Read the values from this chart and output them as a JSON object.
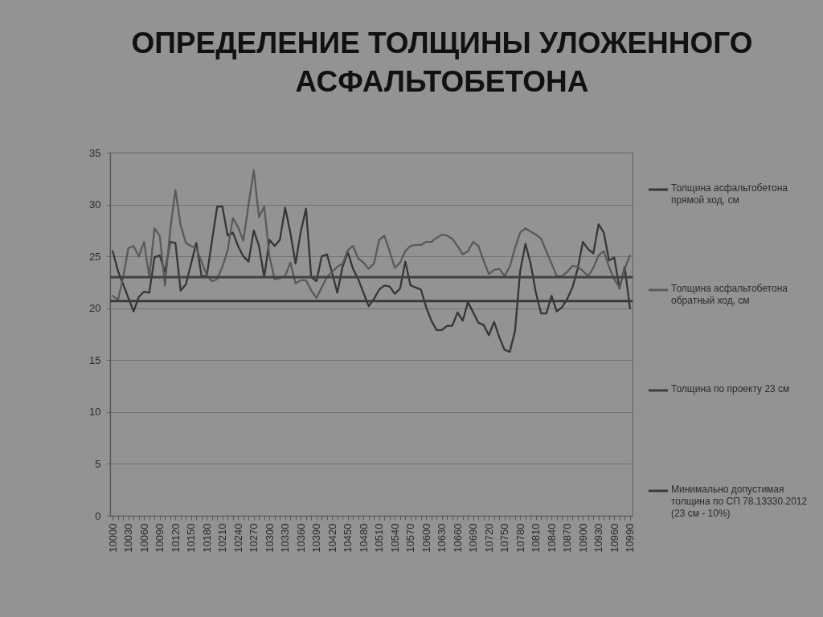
{
  "chart_data": {
    "type": "line",
    "title": "ОПРЕДЕЛЕНИЕ ТОЛЩИНЫ УЛОЖЕННОГО\nАСФАЛЬТОБЕТОНА",
    "categories": [
      "10000",
      null,
      null,
      "10030",
      null,
      null,
      "10060",
      null,
      null,
      "10090",
      null,
      null,
      "10120",
      null,
      null,
      "10150",
      null,
      null,
      "10180",
      null,
      null,
      "10210",
      null,
      null,
      "10240",
      null,
      null,
      "10270",
      null,
      null,
      "10300",
      null,
      null,
      "10330",
      null,
      null,
      "10360",
      null,
      null,
      "10390",
      null,
      null,
      "10420",
      null,
      null,
      "10450",
      null,
      null,
      "10480",
      null,
      null,
      "10510",
      null,
      null,
      "10540",
      null,
      null,
      "10570",
      null,
      null,
      "10600",
      null,
      null,
      "10630",
      null,
      null,
      "10660",
      null,
      null,
      "10690",
      null,
      null,
      "10720",
      null,
      null,
      "10750",
      null,
      null,
      "10780",
      null,
      null,
      "10810",
      null,
      null,
      "10840",
      null,
      null,
      "10870",
      null,
      null,
      "10900",
      null,
      null,
      "10930",
      null,
      null,
      "10960",
      null,
      null,
      "10990"
    ],
    "series": [
      {
        "name": "Толщина асфальтобетона прямой ход, см",
        "color": "#363636",
        "values": [
          25.5,
          23.6,
          22.3,
          21.0,
          19.7,
          21.1,
          21.6,
          21.5,
          24.9,
          25.1,
          23.5,
          26.4,
          26.3,
          21.7,
          22.3,
          24.3,
          26.3,
          23.1,
          23.1,
          26.5,
          29.8,
          29.8,
          27.0,
          27.3,
          26.0,
          25.0,
          24.5,
          27.5,
          26.0,
          23.0,
          26.6,
          26.0,
          26.6,
          29.7,
          27.3,
          24.3,
          27.4,
          29.6,
          23.0,
          22.6,
          25.0,
          25.2,
          23.4,
          21.5,
          24.0,
          25.4,
          23.8,
          22.8,
          21.5,
          20.2,
          20.9,
          21.8,
          22.2,
          22.1,
          21.4,
          21.9,
          24.5,
          22.2,
          22.0,
          21.8,
          20.1,
          18.8,
          17.9,
          17.9,
          18.3,
          18.3,
          19.6,
          18.8,
          20.6,
          19.6,
          18.6,
          18.4,
          17.4,
          18.7,
          17.2,
          16.0,
          15.8,
          17.8,
          23.6,
          26.2,
          24.3,
          21.5,
          19.5,
          19.5,
          21.2,
          19.7,
          20.1,
          20.9,
          22.0,
          23.8,
          26.4,
          25.7,
          25.3,
          28.1,
          27.3,
          24.6,
          24.9,
          21.9,
          24.0,
          20.0
        ]
      },
      {
        "name": "Толщина асфальтобетона обратный ход, см",
        "color": "#5a5a5a",
        "values": [
          21.2,
          20.8,
          23.0,
          25.8,
          26.0,
          25.0,
          26.4,
          23.0,
          27.7,
          27.0,
          22.2,
          27.5,
          31.4,
          28.0,
          26.3,
          26.0,
          25.8,
          24.5,
          23.2,
          22.6,
          22.8,
          24.0,
          25.6,
          28.7,
          27.8,
          26.5,
          30.0,
          33.3,
          28.8,
          29.8,
          25.0,
          22.8,
          22.9,
          23.1,
          24.4,
          22.4,
          22.7,
          22.7,
          21.7,
          21.0,
          22.0,
          23.0,
          23.5,
          24.0,
          24.3,
          25.6,
          26.0,
          24.8,
          24.4,
          23.8,
          24.3,
          26.6,
          27.0,
          25.5,
          23.9,
          24.4,
          25.5,
          26.0,
          26.1,
          26.1,
          26.4,
          26.4,
          26.8,
          27.1,
          27.0,
          26.7,
          26.0,
          25.2,
          25.5,
          26.4,
          26.0,
          24.6,
          23.3,
          23.7,
          23.8,
          23.1,
          24.0,
          25.8,
          27.3,
          27.7,
          27.4,
          27.1,
          26.7,
          25.5,
          24.3,
          23.1,
          23.1,
          23.5,
          24.1,
          24.0,
          23.6,
          23.1,
          23.9,
          25.1,
          25.5,
          24.0,
          22.8,
          22.0,
          23.8,
          25.1
        ]
      }
    ],
    "ref_lines": [
      {
        "axis": "y",
        "value": 23,
        "label": "Толщина по проекту 23 см",
        "color": "#404040"
      },
      {
        "axis": "y",
        "value": 20.7,
        "label": "Минимально допустимая толщина по СП 78.13330.2012 (23 см - 10%)",
        "color": "#3a3a3a"
      }
    ],
    "ylim": [
      0,
      35
    ],
    "yticks": [
      0,
      5,
      10,
      15,
      20,
      25,
      30,
      35
    ],
    "grid": "y",
    "legend": "right"
  }
}
